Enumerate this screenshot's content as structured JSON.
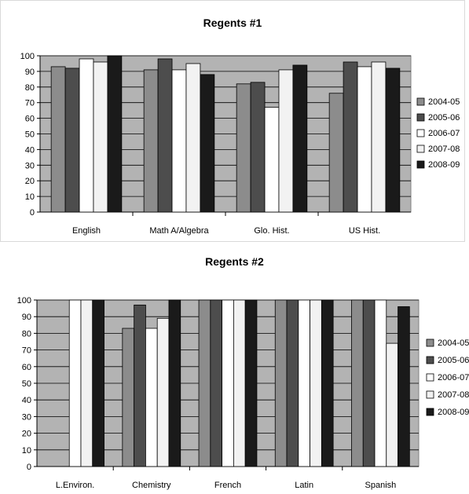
{
  "chart_data": [
    {
      "type": "bar",
      "title": "Regents #1",
      "xlabel": "",
      "ylabel": "",
      "ylim": [
        0,
        100
      ],
      "yticks": [
        0,
        10,
        20,
        30,
        40,
        50,
        60,
        70,
        80,
        90,
        100
      ],
      "grid": true,
      "legend_position": "right",
      "categories": [
        "English",
        "Math A/Algebra",
        "Glo. Hist.",
        "US Hist."
      ],
      "series": [
        {
          "name": "2004-05",
          "color": "#8c8c8c",
          "values": [
            93,
            91,
            82,
            76
          ]
        },
        {
          "name": "2005-06",
          "color": "#4d4d4d",
          "values": [
            92,
            98,
            83,
            96
          ]
        },
        {
          "name": "2006-07",
          "color": "#ffffff",
          "values": [
            98,
            91,
            67,
            93
          ]
        },
        {
          "name": "2007-08",
          "color": "#f2f2f2",
          "values": [
            96,
            95,
            91,
            96
          ]
        },
        {
          "name": "2008-09",
          "color": "#1a1a1a",
          "values": [
            100,
            88,
            94,
            92
          ]
        }
      ],
      "plot_background": "#b3b3b3"
    },
    {
      "type": "bar",
      "title": "Regents #2",
      "xlabel": "",
      "ylabel": "",
      "ylim": [
        0,
        100
      ],
      "yticks": [
        0,
        10,
        20,
        30,
        40,
        50,
        60,
        70,
        80,
        90,
        100
      ],
      "grid": true,
      "legend_position": "right",
      "categories": [
        "L.Environ.",
        "Chemistry",
        "French",
        "Latin",
        "Spanish"
      ],
      "series": [
        {
          "name": "2004-05",
          "color": "#8c8c8c",
          "values": [
            null,
            83,
            100,
            100,
            100
          ]
        },
        {
          "name": "2005-06",
          "color": "#4d4d4d",
          "values": [
            null,
            97,
            100,
            100,
            100
          ]
        },
        {
          "name": "2006-07",
          "color": "#ffffff",
          "values": [
            100,
            83,
            100,
            100,
            100
          ]
        },
        {
          "name": "2007-08",
          "color": "#f2f2f2",
          "values": [
            100,
            89,
            100,
            100,
            74
          ]
        },
        {
          "name": "2008-09",
          "color": "#1a1a1a",
          "values": [
            100,
            100,
            100,
            100,
            96
          ]
        }
      ],
      "plot_background": "#b3b3b3"
    }
  ]
}
